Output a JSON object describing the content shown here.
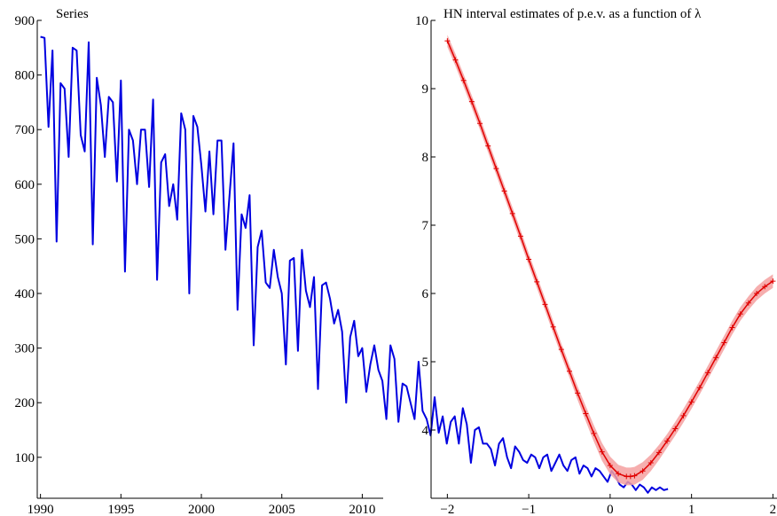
{
  "chart_data": [
    {
      "type": "line",
      "title": "Series",
      "xlabel": "",
      "ylabel": "",
      "xlim": [
        1989.8,
        2011.3
      ],
      "ylim": [
        25,
        900
      ],
      "x_ticks": [
        1990,
        1995,
        2000,
        2005,
        2010
      ],
      "y_ticks": [
        100,
        200,
        300,
        400,
        500,
        600,
        700,
        800,
        900
      ],
      "grid": false,
      "color": "#0000e0",
      "series": [
        {
          "x_start": 1990.0,
          "x_step": 0.25,
          "values": [
            870,
            868,
            705,
            845,
            495,
            785,
            775,
            650,
            850,
            845,
            690,
            660,
            860,
            490,
            795,
            745,
            650,
            760,
            750,
            605,
            790,
            440,
            700,
            680,
            600,
            700,
            700,
            595,
            755,
            425,
            640,
            655,
            560,
            600,
            535,
            730,
            700,
            400,
            725,
            705,
            635,
            550,
            660,
            545,
            680,
            680,
            480,
            580,
            675,
            370,
            545,
            520,
            580,
            305,
            485,
            515,
            420,
            410,
            480,
            430,
            400,
            270,
            460,
            465,
            295,
            480,
            405,
            375,
            430,
            225,
            415,
            420,
            390,
            345,
            370,
            330,
            200,
            320,
            350,
            285,
            300,
            220,
            270,
            305,
            260,
            240,
            170,
            305,
            280,
            165,
            235,
            230,
            200,
            170,
            275,
            185,
            170,
            140,
            210,
            145,
            175,
            125,
            165,
            175,
            125,
            190,
            160,
            90,
            150,
            155,
            125,
            125,
            115,
            85,
            125,
            135,
            100,
            80,
            120,
            110,
            95,
            90,
            105,
            100,
            80,
            100,
            105,
            75,
            90,
            105,
            85,
            75,
            95,
            100,
            70,
            85,
            80,
            65,
            80,
            75,
            65,
            55,
            75,
            65,
            50,
            45,
            55,
            50,
            40,
            50,
            45,
            35,
            45,
            40,
            45,
            40,
            42
          ]
        }
      ]
    },
    {
      "type": "line",
      "title": "HN interval estimates of p.e.v. as a function of λ",
      "xlabel": "",
      "ylabel": "",
      "xlim": [
        -2.2,
        2.05
      ],
      "ylim": [
        3.0,
        10.0
      ],
      "x_ticks": [
        "−2",
        "−1",
        "0",
        "1",
        "2"
      ],
      "y_ticks": [
        4,
        5,
        6,
        7,
        8,
        9,
        10
      ],
      "grid": false,
      "color": "#e00000",
      "band_color": "#f4a0a0",
      "series": [
        {
          "x": [
            -2.0,
            -1.9,
            -1.8,
            -1.7,
            -1.6,
            -1.5,
            -1.4,
            -1.3,
            -1.2,
            -1.1,
            -1.0,
            -0.9,
            -0.8,
            -0.7,
            -0.6,
            -0.5,
            -0.4,
            -0.3,
            -0.2,
            -0.1,
            0.0,
            0.1,
            0.2,
            0.25,
            0.3,
            0.4,
            0.5,
            0.6,
            0.7,
            0.8,
            0.9,
            1.0,
            1.1,
            1.2,
            1.3,
            1.4,
            1.5,
            1.6,
            1.7,
            1.8,
            1.9,
            2.0
          ],
          "values": [
            9.7,
            9.42,
            9.12,
            8.81,
            8.49,
            8.16,
            7.83,
            7.5,
            7.17,
            6.84,
            6.5,
            6.17,
            5.84,
            5.51,
            5.18,
            4.86,
            4.54,
            4.24,
            3.95,
            3.68,
            3.48,
            3.36,
            3.32,
            3.32,
            3.33,
            3.4,
            3.52,
            3.67,
            3.84,
            4.02,
            4.21,
            4.41,
            4.62,
            4.84,
            5.06,
            5.28,
            5.5,
            5.7,
            5.86,
            6.0,
            6.1,
            6.18
          ],
          "band_halfwidth": [
            0.09,
            0.09,
            0.09,
            0.09,
            0.09,
            0.09,
            0.09,
            0.09,
            0.09,
            0.09,
            0.09,
            0.09,
            0.09,
            0.09,
            0.09,
            0.09,
            0.1,
            0.11,
            0.12,
            0.13,
            0.13,
            0.13,
            0.13,
            0.13,
            0.13,
            0.13,
            0.12,
            0.11,
            0.1,
            0.1,
            0.1,
            0.1,
            0.1,
            0.1,
            0.1,
            0.1,
            0.1,
            0.1,
            0.1,
            0.1,
            0.1,
            0.1
          ]
        }
      ]
    }
  ]
}
